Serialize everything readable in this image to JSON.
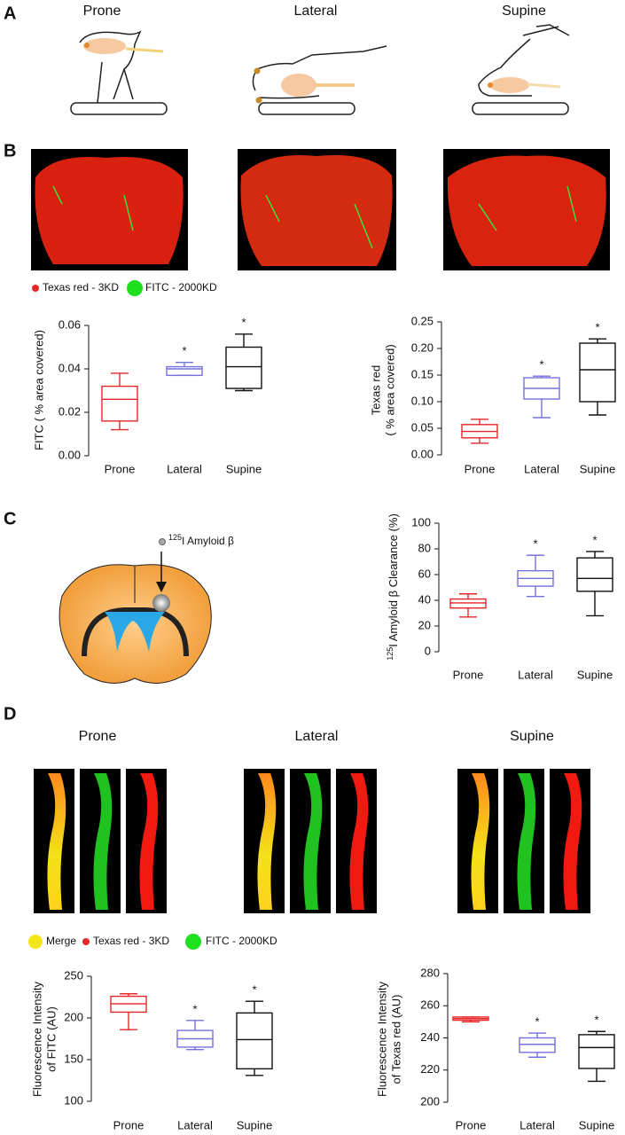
{
  "panels": {
    "A": {
      "label": "A",
      "titles": [
        "Prone",
        "Lateral",
        "Supine"
      ]
    },
    "B": {
      "label": "B",
      "legend": [
        "Texas red - 3KD",
        "FITC - 2000KD"
      ]
    },
    "C": {
      "label": "C",
      "annotation": {
        "sup": "125",
        "text": "I Amyloid β"
      }
    },
    "D": {
      "label": "D",
      "titles": [
        "Prone",
        "Lateral",
        "Supine"
      ],
      "legend": [
        "Merge",
        "Texas red - 3KD",
        "FITC - 2000KD"
      ]
    }
  },
  "chart_data": [
    {
      "type": "box",
      "ylabel": [
        "FITC ( % area covered)"
      ],
      "categories": [
        "Prone",
        "Lateral",
        "Supine"
      ],
      "ylim": [
        0,
        0.06
      ],
      "yticks": [
        {
          "value": 0,
          "label": "0.00"
        },
        0.02,
        0.04,
        0.06
      ],
      "boxes": [
        {
          "color": "#e8262a",
          "min": 0.012,
          "q1": 0.016,
          "median": 0.026,
          "q3": 0.032,
          "max": 0.038
        },
        {
          "color": "#7472dc",
          "min": 0.037,
          "q1": 0.037,
          "median": 0.04,
          "q3": 0.041,
          "max": 0.043
        },
        {
          "color": "#111111",
          "min": 0.03,
          "q1": 0.031,
          "median": 0.041,
          "q3": 0.05,
          "max": 0.056
        }
      ],
      "significance": [
        null,
        "*",
        "*"
      ]
    },
    {
      "type": "box",
      "ylabel": [
        "Texas red",
        "( % area covered)"
      ],
      "categories": [
        "Prone",
        "Lateral",
        "Supine"
      ],
      "ylim": [
        0,
        0.25
      ],
      "yticks": [
        {
          "value": 0,
          "label": "0.00"
        },
        0.05,
        {
          "value": 0.1,
          "label": "0.10"
        },
        0.15,
        {
          "value": 0.2,
          "label": "0.20"
        },
        0.25
      ],
      "boxes": [
        {
          "color": "#e8262a",
          "min": 0.022,
          "q1": 0.032,
          "median": 0.044,
          "q3": 0.057,
          "max": 0.067
        },
        {
          "color": "#7472dc",
          "min": 0.07,
          "q1": 0.105,
          "median": 0.125,
          "q3": 0.145,
          "max": 0.148
        },
        {
          "color": "#111111",
          "min": 0.075,
          "q1": 0.1,
          "median": 0.16,
          "q3": 0.21,
          "max": 0.218
        }
      ],
      "significance": [
        null,
        "*",
        "*"
      ]
    },
    {
      "type": "box",
      "ylabel": [
        {
          "sup": "125",
          "text": "I Amyloid β Clearance (%)"
        }
      ],
      "categories": [
        "Prone",
        "Lateral",
        "Supine"
      ],
      "ylim": [
        0,
        100
      ],
      "yticks": [
        0,
        20,
        40,
        60,
        80,
        100
      ],
      "boxes": [
        {
          "color": "#e8262a",
          "min": 27,
          "q1": 34,
          "median": 38,
          "q3": 41,
          "max": 45
        },
        {
          "color": "#7472dc",
          "min": 43,
          "q1": 51,
          "median": 57,
          "q3": 63,
          "max": 75
        },
        {
          "color": "#111111",
          "min": 28,
          "q1": 47,
          "median": 57,
          "q3": 73,
          "max": 78
        }
      ],
      "significance": [
        null,
        "*",
        "*"
      ]
    },
    {
      "type": "box",
      "ylabel": [
        "Fluorescence Intensity",
        "of FITC (AU)"
      ],
      "categories": [
        "Prone",
        "Lateral",
        "Supine"
      ],
      "ylim": [
        100,
        250
      ],
      "yticks": [
        100,
        150,
        200,
        250
      ],
      "boxes": [
        {
          "color": "#e8262a",
          "min": 186,
          "q1": 207,
          "median": 217,
          "q3": 226,
          "max": 229
        },
        {
          "color": "#7472dc",
          "min": 162,
          "q1": 165,
          "median": 175,
          "q3": 185,
          "max": 197
        },
        {
          "color": "#111111",
          "min": 131,
          "q1": 139,
          "median": 174,
          "q3": 206,
          "max": 220
        }
      ],
      "significance": [
        null,
        "*",
        "*"
      ]
    },
    {
      "type": "box",
      "ylabel": [
        "Fluorescence Intensity",
        "of Texas red (AU)"
      ],
      "categories": [
        "Prone",
        "Lateral",
        "Supine"
      ],
      "ylim": [
        200,
        280
      ],
      "yticks": [
        200,
        220,
        240,
        260,
        280
      ],
      "boxes": [
        {
          "color": "#e8262a",
          "min": 250,
          "q1": 251,
          "median": 252,
          "q3": 253,
          "max": 253
        },
        {
          "color": "#7472dc",
          "min": 228,
          "q1": 231,
          "median": 236,
          "q3": 240,
          "max": 243
        },
        {
          "color": "#111111",
          "min": 213,
          "q1": 221,
          "median": 234,
          "q3": 242,
          "max": 244
        }
      ],
      "significance": [
        null,
        "*",
        "*"
      ]
    }
  ]
}
